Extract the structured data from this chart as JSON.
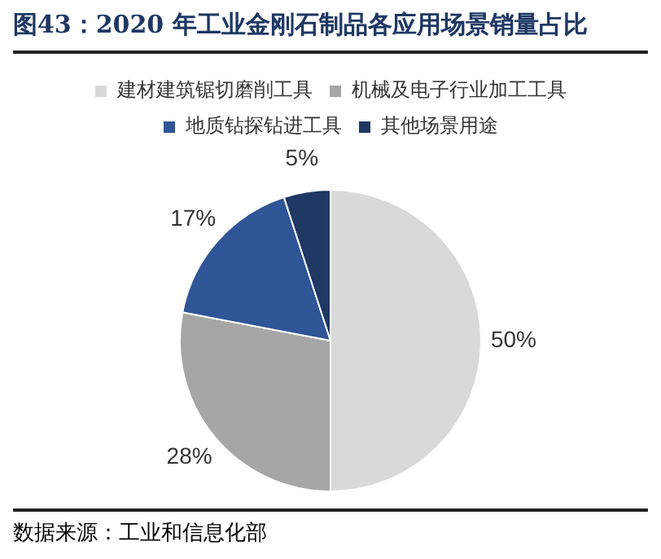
{
  "chart_data": {
    "type": "pie",
    "title": "图43：2020 年工业金刚石制品各应用场景销量占比",
    "categories": [
      "建材建筑锯切磨削工具",
      "机械及电子行业加工工具",
      "地质钻探钻进工具",
      "其他场景用途"
    ],
    "values": [
      50,
      28,
      17,
      5
    ],
    "colors": [
      "#d9d9d9",
      "#a6a6a6",
      "#2f5597",
      "#1f3864"
    ],
    "legend": "top",
    "value_labels": [
      "50%",
      "28%",
      "17%",
      "5%"
    ],
    "annotations": [
      "数据来源：工业和信息化部"
    ]
  }
}
